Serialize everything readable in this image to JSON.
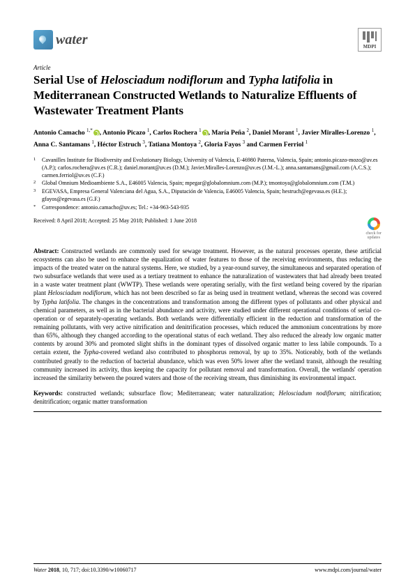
{
  "journal": {
    "name": "water",
    "publisher": "MDPI"
  },
  "article_type": "Article",
  "title_parts": {
    "t1": "Serial Use of ",
    "s1": "Helosciadum nodiflorum",
    "t2": " and ",
    "s2": "Typha latifolia",
    "t3": " in Mediterranean Constructed Wetlands to Naturalize Effluents of Wastewater Treatment Plants"
  },
  "authors_line1": "Antonio Camacho ",
  "authors_sup1": "1,",
  "authors_star": "*",
  "authors_line1b": ", Antonio Picazo ",
  "authors_sup2": "1",
  "authors_line1c": ", Carlos Rochera ",
  "authors_sup3": "1",
  "authors_line1d": ", María Peña ",
  "authors_sup4": "2",
  "authors_line1e": ", Daniel Morant ",
  "authors_sup5": "1",
  "authors_line1f": ",",
  "authors_line2": "Javier Miralles-Lorenzo ",
  "authors_sup6": "1",
  "authors_line2b": ", Anna C. Santamans ",
  "authors_sup7": "1",
  "authors_line2c": ", Héctor Estruch ",
  "authors_sup8": "3",
  "authors_line2d": ", Tatiana Montoya ",
  "authors_sup9": "2",
  "authors_line2e": ",",
  "authors_line3": "Gloria Fayos ",
  "authors_sup10": "3",
  "authors_line3b": " and Carmen Ferriol ",
  "authors_sup11": "1",
  "affiliations": [
    {
      "num": "1",
      "text": "Cavanilles Institute for Biodiversity and Evolutionary Biology, University of Valencia, E-46980 Paterna, Valencia, Spain; antonio.picazo-mozo@uv.es (A.P.); carlos.rochera@uv.es (C.R.); daniel.morant@uv.es (D.M.); Javier.Miralles-Lorenzo@uv.es (J.M.-L.); anna.santamans@gmail.com (A.C.S.); carmen.ferriol@uv.es (C.F.)"
    },
    {
      "num": "2",
      "text": "Global Omnium Medioambiente S.A., E46005 Valencia, Spain; mpegar@globalomnium.com (M.P.); tmontoya@globalomnium.com (T.M.)"
    },
    {
      "num": "3",
      "text": "EGEVASA, Empresa General Valenciana del Agua, S.A., Diputación de Valencia, E46005 Valencia, Spain; hestruch@egevasa.es (H.E.); gfayos@egevasa.es (G.F.)"
    },
    {
      "num": "*",
      "text": "Correspondence: antonio.camacho@uv.es; Tel.: +34-963-543-935"
    }
  ],
  "dates": "Received: 8 April 2018; Accepted: 25 May 2018; Published: 1 June 2018",
  "check_updates": {
    "l1": "check for",
    "l2": "updates"
  },
  "abstract_label": "Abstract:",
  "abstract_text": " Constructed wetlands are commonly used for sewage treatment. However, as the natural processes operate, these artificial ecosystems can also be used to enhance the equalization of water features to those of the receiving environments, thus reducing the impacts of the treated water on the natural systems. Here, we studied, by a year-round survey, the simultaneous and separated operation of two subsurface wetlands that were used as a tertiary treatment to enhance the naturalization of wastewaters that had already been treated in a waste water treatment plant (WWTP). These wetlands were operating serially, with the first wetland being covered by the riparian plant ",
  "abstract_s1": "Helosciadum nodiflorum",
  "abstract_text2": ", which has not been described so far as being used in treatment wetland, whereas the second was covered by ",
  "abstract_s2": "Typha latifolia",
  "abstract_text3": ". The changes in the concentrations and transformation among the different types of pollutants and other physical and chemical parameters, as well as in the bacterial abundance and activity, were studied under different operational conditions of serial co-operation or of separately-operating wetlands. Both wetlands were differentially efficient in the reduction and transformation of the remaining pollutants, with very active nitrification and denitrification processes, which reduced the ammonium concentrations by more than 65%, although they changed according to the operational status of each wetland. They also reduced the already low organic matter contents by around 30% and promoted slight shifts in the dominant types of dissolved organic matter to less labile compounds. To a certain extent, the ",
  "abstract_s3": "Typha",
  "abstract_text4": "-covered wetland also contributed to phosphorus removal, by up to 35%. Noticeably, both of the wetlands contributed greatly to the reduction of bacterial abundance, which was even 50% lower after the wetland transit, although the resulting community increased its activity, thus keeping the capacity for pollutant removal and transformation. Overall, the wetlands' operation increased the similarity between the poured waters and those of the receiving stream, thus diminishing its environmental impact.",
  "keywords_label": "Keywords:",
  "keywords_text1": " constructed wetlands; subsurface flow; Mediterranean; water naturalization; ",
  "keywords_s1": "Helosciadum nodiflorum",
  "keywords_text2": "; nitrification; denitrification; organic matter transformation",
  "footer": {
    "left_italic": "Water ",
    "left_bold": "2018",
    "left_rest": ", 10, 717; doi:10.3390/w10060717",
    "right": "www.mdpi.com/journal/water"
  },
  "colors": {
    "orcid": "#a6ce39",
    "logo_blue": "#5ba8d4",
    "text": "#000000",
    "bg": "#ffffff"
  }
}
